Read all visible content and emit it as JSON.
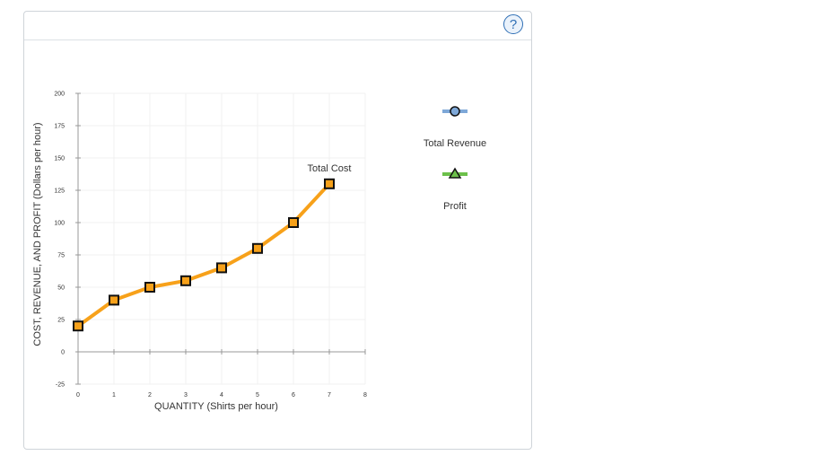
{
  "help": {
    "label": "?"
  },
  "chart_data": {
    "type": "line",
    "xlabel": "QUANTITY (Shirts per hour)",
    "ylabel": "COST, REVENUE, AND PROFIT (Dollars per hour)",
    "xlim": [
      0,
      8
    ],
    "ylim": [
      -25,
      200
    ],
    "xticks": [
      0,
      1,
      2,
      3,
      4,
      5,
      6,
      7,
      8
    ],
    "yticks": [
      -25,
      0,
      25,
      50,
      75,
      100,
      125,
      150,
      175,
      200
    ],
    "grid": true,
    "series": [
      {
        "name": "Total Cost",
        "color": "#f7a11a",
        "marker": "square",
        "x": [
          0,
          1,
          2,
          3,
          4,
          5,
          6,
          7
        ],
        "values": [
          20,
          40,
          50,
          55,
          65,
          80,
          100,
          130
        ]
      }
    ],
    "legend": {
      "placement": "right",
      "items": [
        {
          "name": "Total Revenue",
          "color": "#7ea8d8",
          "marker": "circle",
          "marker_color": "#7ea8d8"
        },
        {
          "name": "Profit",
          "color": "#6cc04a",
          "marker": "triangle",
          "marker_color": "#6cc04a"
        }
      ]
    }
  }
}
